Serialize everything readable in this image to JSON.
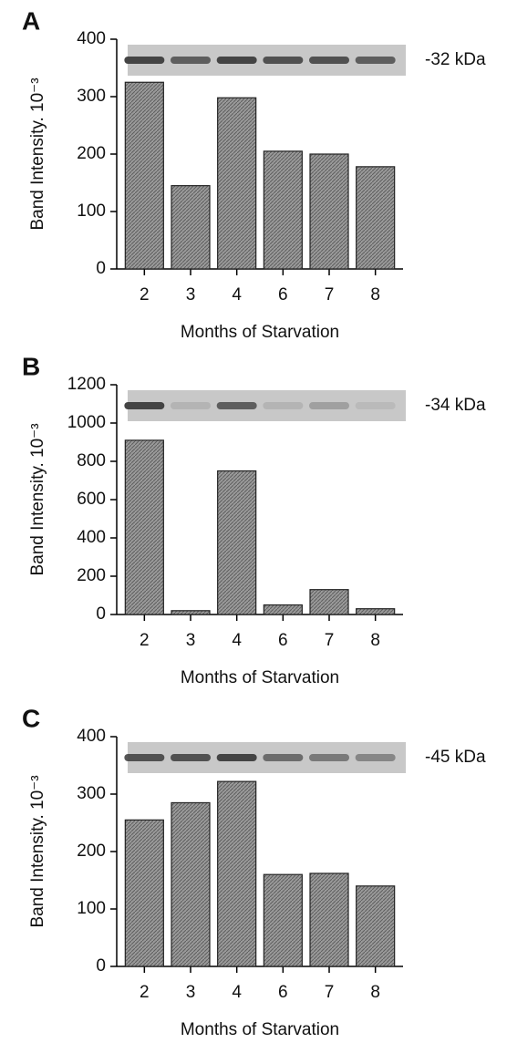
{
  "chart_data": [
    {
      "type": "bar",
      "panel_label": "A",
      "ylabel": "Band Intensity. 10⁻³",
      "xlabel": "Months of Starvation",
      "annotation": "-32 kDa",
      "categories": [
        "2",
        "3",
        "4",
        "6",
        "7",
        "8"
      ],
      "values": [
        325,
        145,
        298,
        205,
        200,
        178
      ],
      "color": "#8c8c8c",
      "ylim": [
        0,
        400
      ],
      "yticks": [
        0,
        100,
        200,
        300,
        400
      ]
    },
    {
      "type": "bar",
      "panel_label": "B",
      "ylabel": "Band Intensity. 10⁻³",
      "xlabel": "Months of Starvation",
      "annotation": "-34 kDa",
      "categories": [
        "2",
        "3",
        "4",
        "6",
        "7",
        "8"
      ],
      "values": [
        910,
        20,
        750,
        50,
        130,
        30
      ],
      "color": "#8c8c8c",
      "ylim": [
        0,
        1200
      ],
      "yticks": [
        0,
        200,
        400,
        600,
        800,
        1000,
        1200
      ]
    },
    {
      "type": "bar",
      "panel_label": "C",
      "ylabel": "Band Intensity. 10⁻³",
      "xlabel": "Months of Starvation",
      "annotation": "-45 kDa",
      "categories": [
        "2",
        "3",
        "4",
        "6",
        "7",
        "8"
      ],
      "values": [
        255,
        285,
        322,
        160,
        162,
        140
      ],
      "color": "#8c8c8c",
      "ylim": [
        0,
        400
      ],
      "yticks": [
        0,
        100,
        200,
        300,
        400
      ]
    }
  ]
}
